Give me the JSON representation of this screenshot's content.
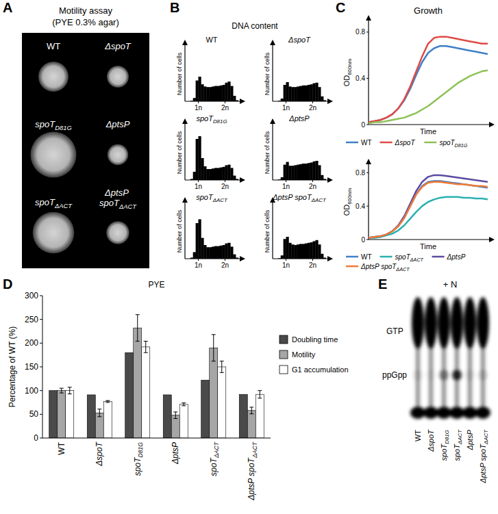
{
  "panel_letters": [
    "A",
    "B",
    "C",
    "D",
    "E"
  ],
  "motility_assay": {
    "title": "Motility assay",
    "subtitle": "(PYE 0.3% agar)",
    "strains": [
      "WT",
      "ΔspoT",
      "spoTD81G",
      "ΔptsP",
      "spoTΔACT",
      "ΔptsP spoTΔACT"
    ]
  },
  "dna_content": {
    "title": "DNA content"
  },
  "growth": {
    "title": "Growth"
  },
  "gel": {
    "title": "+ N",
    "bands": [
      "GTP",
      "ppGpp"
    ],
    "lanes": [
      "WT",
      "ΔspoT",
      "spoTD81G",
      "spoTΔACT",
      "ΔptsP",
      "ΔptsP spoTΔACT"
    ],
    "ppGpp_signal": [
      0.1,
      0.05,
      0.4,
      0.8,
      0.1,
      0.15
    ]
  },
  "chart_data": [
    {
      "type": "histogram",
      "title": "WT",
      "y_label": "Number of cells",
      "color": "#000000",
      "bins": [
        0.5,
        0.6,
        0.7,
        0.8,
        0.9,
        1,
        1.1,
        1.2,
        1.3,
        1.4,
        1.5,
        1.6,
        1.7,
        1.8,
        1.9,
        2,
        2.1,
        2.2,
        2.3,
        2.4,
        2.5
      ],
      "values": [
        0,
        0,
        1,
        6,
        38,
        45,
        31,
        27,
        26,
        26,
        27,
        28,
        28,
        29,
        30,
        34,
        36,
        28,
        10,
        2
      ],
      "xlim": [
        0.5,
        2.5
      ],
      "ylim": [
        0,
        100
      ],
      "xticks": [
        {
          "value": 1,
          "label": "1n"
        },
        {
          "value": 2,
          "label": "2n"
        }
      ],
      "tick_labels": "x"
    },
    {
      "type": "histogram",
      "title": "ΔspoT",
      "y_label": "Number of cells",
      "color": "#000000",
      "bins": [
        0.5,
        0.6,
        0.7,
        0.8,
        0.9,
        1,
        1.1,
        1.2,
        1.3,
        1.4,
        1.5,
        1.6,
        1.7,
        1.8,
        1.9,
        2,
        2.1,
        2.2,
        2.3,
        2.4,
        2.5
      ],
      "values": [
        0,
        0,
        1,
        5,
        30,
        35,
        27,
        26,
        26,
        27,
        28,
        29,
        29,
        30,
        31,
        33,
        34,
        26,
        9,
        2
      ],
      "xlim": [
        0.5,
        2.5
      ],
      "ylim": [
        0,
        100
      ],
      "xticks": [
        {
          "value": 1,
          "label": "1n"
        },
        {
          "value": 2,
          "label": "2n"
        }
      ],
      "tick_labels": "x"
    },
    {
      "type": "histogram",
      "title": "spoTD81G",
      "y_label": "Number of cells",
      "color": "#000000",
      "bins": [
        0.5,
        0.6,
        0.7,
        0.8,
        0.9,
        1,
        1.1,
        1.2,
        1.3,
        1.4,
        1.5,
        1.6,
        1.7,
        1.8,
        1.9,
        2,
        2.1,
        2.2,
        2.3,
        2.4,
        2.5
      ],
      "values": [
        0,
        0,
        2,
        15,
        75,
        80,
        40,
        25,
        20,
        20,
        21,
        22,
        22,
        23,
        24,
        27,
        28,
        22,
        8,
        2
      ],
      "xlim": [
        0.5,
        2.5
      ],
      "ylim": [
        0,
        100
      ],
      "xticks": [
        {
          "value": 1,
          "label": "1n"
        },
        {
          "value": 2,
          "label": "2n"
        }
      ],
      "tick_labels": "x"
    },
    {
      "type": "histogram",
      "title": "ΔptsP",
      "y_label": "Number of cells",
      "color": "#000000",
      "bins": [
        0.5,
        0.6,
        0.7,
        0.8,
        0.9,
        1,
        1.1,
        1.2,
        1.3,
        1.4,
        1.5,
        1.6,
        1.7,
        1.8,
        1.9,
        2,
        2.1,
        2.2,
        2.3,
        2.4,
        2.5
      ],
      "values": [
        0,
        0,
        1,
        5,
        28,
        33,
        26,
        26,
        27,
        28,
        29,
        30,
        30,
        31,
        32,
        34,
        35,
        27,
        9,
        2
      ],
      "xlim": [
        0.5,
        2.5
      ],
      "ylim": [
        0,
        100
      ],
      "xticks": [
        {
          "value": 1,
          "label": "1n"
        },
        {
          "value": 2,
          "label": "2n"
        }
      ],
      "tick_labels": "x"
    },
    {
      "type": "histogram",
      "title": "spoTΔACT",
      "y_label": "Number of cells",
      "color": "#000000",
      "bins": [
        0.5,
        0.6,
        0.7,
        0.8,
        0.9,
        1,
        1.1,
        1.2,
        1.3,
        1.4,
        1.5,
        1.6,
        1.7,
        1.8,
        1.9,
        2,
        2.1,
        2.2,
        2.3,
        2.4,
        2.5
      ],
      "values": [
        0,
        0,
        2,
        12,
        65,
        72,
        38,
        25,
        21,
        21,
        22,
        23,
        23,
        24,
        25,
        28,
        29,
        22,
        8,
        2
      ],
      "xlim": [
        0.5,
        2.5
      ],
      "ylim": [
        0,
        100
      ],
      "xticks": [
        {
          "value": 1,
          "label": "1n"
        },
        {
          "value": 2,
          "label": "2n"
        }
      ],
      "tick_labels": "x"
    },
    {
      "type": "histogram",
      "title": "ΔptsP spoTΔACT",
      "y_label": "Number of cells",
      "color": "#000000",
      "bins": [
        0.5,
        0.6,
        0.7,
        0.8,
        0.9,
        1,
        1.1,
        1.2,
        1.3,
        1.4,
        1.5,
        1.6,
        1.7,
        1.8,
        1.9,
        2,
        2.1,
        2.2,
        2.3,
        2.4,
        2.5
      ],
      "values": [
        0,
        0,
        1,
        6,
        36,
        40,
        29,
        26,
        25,
        26,
        27,
        27,
        28,
        29,
        30,
        32,
        34,
        26,
        9,
        2
      ],
      "xlim": [
        0.5,
        2.5
      ],
      "ylim": [
        0,
        100
      ],
      "xticks": [
        {
          "value": 1,
          "label": "1n"
        },
        {
          "value": 2,
          "label": "2n"
        }
      ],
      "tick_labels": "x"
    },
    {
      "type": "line",
      "x_label": "Time",
      "y_label": "OD600nm",
      "xlim": [
        0,
        10
      ],
      "ylim": [
        0,
        0.9
      ],
      "yticks": [
        0,
        0.4,
        0.8
      ],
      "tick_labels": "y",
      "legend": "bottom",
      "x": [
        0,
        0.5,
        1,
        1.5,
        2,
        2.5,
        3,
        3.5,
        4,
        4.5,
        5,
        5.5,
        6,
        6.5,
        7,
        7.5,
        8,
        8.5,
        9,
        9.5,
        10
      ],
      "series": [
        {
          "name": "WT",
          "color": "#3f7fc6",
          "values": [
            0.02,
            0.03,
            0.04,
            0.06,
            0.09,
            0.14,
            0.21,
            0.31,
            0.43,
            0.54,
            0.62,
            0.66,
            0.68,
            0.68,
            0.67,
            0.66,
            0.65,
            0.64,
            0.63,
            0.62,
            0.61
          ]
        },
        {
          "name": "ΔspoT",
          "color": "#e04a45",
          "values": [
            0.02,
            0.03,
            0.04,
            0.06,
            0.09,
            0.14,
            0.22,
            0.33,
            0.46,
            0.59,
            0.7,
            0.75,
            0.76,
            0.76,
            0.75,
            0.74,
            0.73,
            0.72,
            0.71,
            0.7,
            0.7
          ]
        },
        {
          "name": "spoTD81G",
          "color": "#8dc257",
          "values": [
            0.01,
            0.02,
            0.02,
            0.03,
            0.04,
            0.05,
            0.06,
            0.08,
            0.1,
            0.13,
            0.16,
            0.2,
            0.24,
            0.28,
            0.32,
            0.36,
            0.39,
            0.42,
            0.44,
            0.46,
            0.47
          ]
        }
      ]
    },
    {
      "type": "line",
      "x_label": "Time",
      "y_label": "OD600nm",
      "xlim": [
        0,
        10
      ],
      "ylim": [
        0,
        0.9
      ],
      "yticks": [
        0,
        0.4,
        0.8
      ],
      "tick_labels": "y",
      "legend": "bottom",
      "x": [
        0,
        0.5,
        1,
        1.5,
        2,
        2.5,
        3,
        3.5,
        4,
        4.5,
        5,
        5.5,
        6,
        6.5,
        7,
        7.5,
        8,
        8.5,
        9,
        9.5,
        10
      ],
      "series": [
        {
          "name": "WT",
          "color": "#3f7fc6",
          "values": [
            0.02,
            0.03,
            0.04,
            0.06,
            0.1,
            0.16,
            0.26,
            0.4,
            0.54,
            0.64,
            0.69,
            0.7,
            0.7,
            0.69,
            0.68,
            0.67,
            0.66,
            0.65,
            0.64,
            0.63,
            0.62
          ]
        },
        {
          "name": "spoTΔACT",
          "color": "#2ab0b0",
          "values": [
            0.02,
            0.02,
            0.03,
            0.05,
            0.07,
            0.11,
            0.17,
            0.25,
            0.33,
            0.4,
            0.45,
            0.48,
            0.5,
            0.51,
            0.51,
            0.51,
            0.5,
            0.5,
            0.49,
            0.49,
            0.48
          ]
        },
        {
          "name": "ΔptsP",
          "color": "#5b4aa0",
          "values": [
            0.02,
            0.03,
            0.04,
            0.06,
            0.1,
            0.17,
            0.28,
            0.43,
            0.58,
            0.69,
            0.75,
            0.77,
            0.77,
            0.76,
            0.75,
            0.74,
            0.73,
            0.72,
            0.71,
            0.7,
            0.69
          ]
        },
        {
          "name": "ΔptsP spoTΔACT",
          "color": "#f07a35",
          "values": [
            0.02,
            0.03,
            0.04,
            0.06,
            0.1,
            0.16,
            0.26,
            0.4,
            0.54,
            0.63,
            0.68,
            0.69,
            0.69,
            0.68,
            0.67,
            0.66,
            0.66,
            0.65,
            0.64,
            0.64,
            0.63
          ]
        }
      ]
    },
    {
      "type": "bar",
      "title": "PYE",
      "y_label": "Percentage of WT (%)",
      "categories": [
        "WT",
        "ΔspoT",
        "spoTD81G",
        "ΔptsP",
        "spoTΔACT",
        "ΔptsP spoTΔACT"
      ],
      "series": [
        {
          "name": "Doubling time",
          "color": "#4a4a4a",
          "values": [
            100,
            91,
            180,
            91,
            122,
            92
          ]
        },
        {
          "name": "Motility",
          "color": "#a6a6a6",
          "values": [
            100,
            53,
            232,
            48,
            190,
            58
          ],
          "errors": [
            5,
            8,
            28,
            7,
            28,
            7
          ]
        },
        {
          "name": "G1 accumulation",
          "color": "#ffffff",
          "values": [
            100,
            77,
            192,
            71,
            150,
            92
          ],
          "errors": [
            7,
            2,
            12,
            3,
            12,
            8
          ]
        }
      ],
      "ylim": [
        0,
        300
      ],
      "yticks": [
        0,
        50,
        100,
        150,
        200,
        250,
        300
      ],
      "grid": false,
      "legend": "right"
    }
  ]
}
